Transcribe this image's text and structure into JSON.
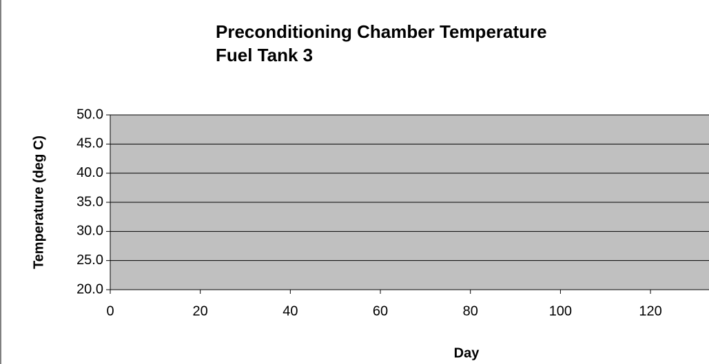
{
  "chart_data": {
    "type": "line",
    "title": [
      "Preconditioning Chamber Temperature",
      "Fuel Tank 3"
    ],
    "xlabel": "Day",
    "ylabel": "Temperature (deg C)",
    "series": [],
    "xlim": [
      0,
      133
    ],
    "xticks": [
      0,
      20,
      40,
      60,
      80,
      100,
      120
    ],
    "ylim": [
      20,
      50
    ],
    "yticks": [
      {
        "value": 20,
        "label": "20.0"
      },
      {
        "value": 25,
        "label": "25.0"
      },
      {
        "value": 30,
        "label": "30.0"
      },
      {
        "value": 35,
        "label": "35.0"
      },
      {
        "value": 40,
        "label": "40.0"
      },
      {
        "value": 45,
        "label": "45.0"
      },
      {
        "value": 50,
        "label": "50.0"
      }
    ],
    "grid": true,
    "plot_color": "#c0c0c0"
  }
}
